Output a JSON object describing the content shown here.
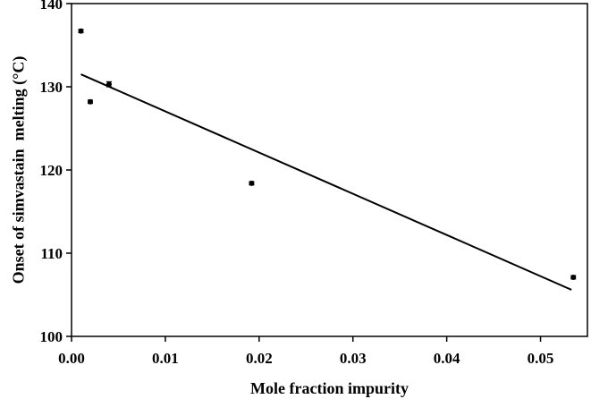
{
  "chart_data": {
    "type": "scatter",
    "title": "",
    "xlabel": "Mole fraction impurity",
    "ylabel": "Onset of simvastain  melting (°C)",
    "xlim": [
      0,
      0.055
    ],
    "ylim": [
      100,
      140
    ],
    "x_ticks": [
      0.0,
      0.01,
      0.02,
      0.03,
      0.04,
      0.05
    ],
    "x_tick_labels": [
      "0.00",
      "0.01",
      "0.02",
      "0.03",
      "0.04",
      "0.05"
    ],
    "y_ticks": [
      100,
      110,
      120,
      130,
      140
    ],
    "y_tick_labels": [
      "100",
      "110",
      "120",
      "130",
      "140"
    ],
    "grid": false,
    "legend": "none",
    "series": [
      {
        "x": [
          0.001,
          0.002,
          0.004,
          0.0192,
          0.0535
        ],
        "y": [
          136.7,
          128.2,
          130.3,
          118.4,
          107.1
        ],
        "yerr": [
          0.2,
          0.2,
          0.3,
          0.2,
          0.2
        ]
      }
    ],
    "fit_line": {
      "x": [
        0.001,
        0.0533
      ],
      "y": [
        131.5,
        105.6
      ]
    },
    "colors": {
      "marks": "#000000",
      "axes": "#000000"
    }
  }
}
